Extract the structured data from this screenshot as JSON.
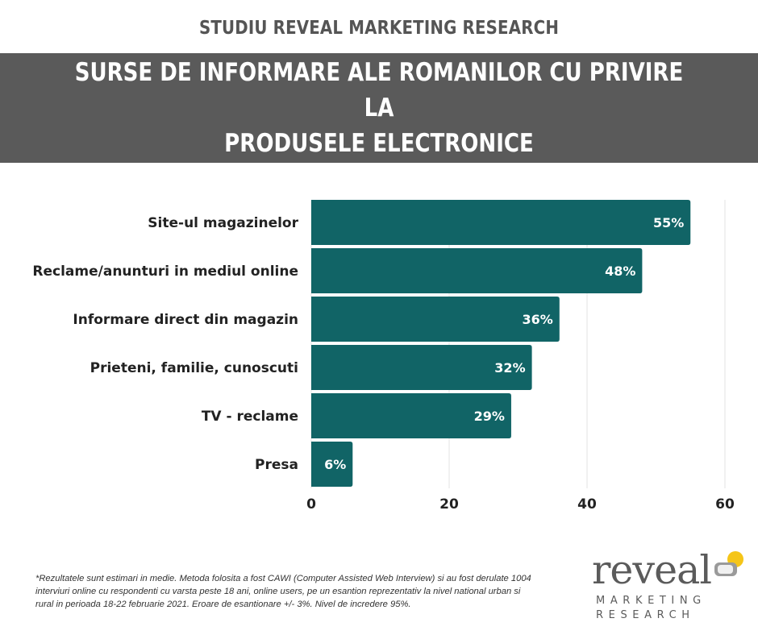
{
  "header": {
    "study_title": "STUDIU REVEAL MARKETING RESEARCH",
    "banner_title_line1": "SURSE DE INFORMARE ALE ROMANILOR CU PRIVIRE LA",
    "banner_title_line2": "PRODUSELE ELECTRONICE"
  },
  "chart_data": {
    "type": "bar",
    "orientation": "horizontal",
    "categories": [
      "Site-ul magazinelor",
      "Reclame/anunturi in mediul online",
      "Informare direct din magazin",
      "Prieteni, familie, cunoscuti",
      "TV - reclame",
      "Presa"
    ],
    "values": [
      55,
      48,
      36,
      32,
      29,
      6
    ],
    "data_labels": [
      "55%",
      "48%",
      "36%",
      "32%",
      "29%",
      "6%"
    ],
    "xlim": [
      0,
      60
    ],
    "xticks": [
      0,
      20,
      40,
      60
    ],
    "grid": true,
    "bar_color": "#116466"
  },
  "footnote": "*Rezultatele sunt estimari in medie. Metoda folosita a fost CAWI (Computer Assisted Web Interview) si au fost derulate 1004 interviuri online cu respondenti cu varsta peste 18 ani, online users, pe un esantion reprezentativ la nivel national urban si rural in perioada 18-22 februarie 2021. Eroare de esantionare +/- 3%. Nivel de incredere 95%.",
  "logo": {
    "word": "reveal",
    "line1": "MARKETING",
    "line2": "RESEARCH",
    "colors": {
      "text": "#5b5b5b",
      "accent": "#f5c518",
      "mark": "#9a9a9a"
    }
  }
}
